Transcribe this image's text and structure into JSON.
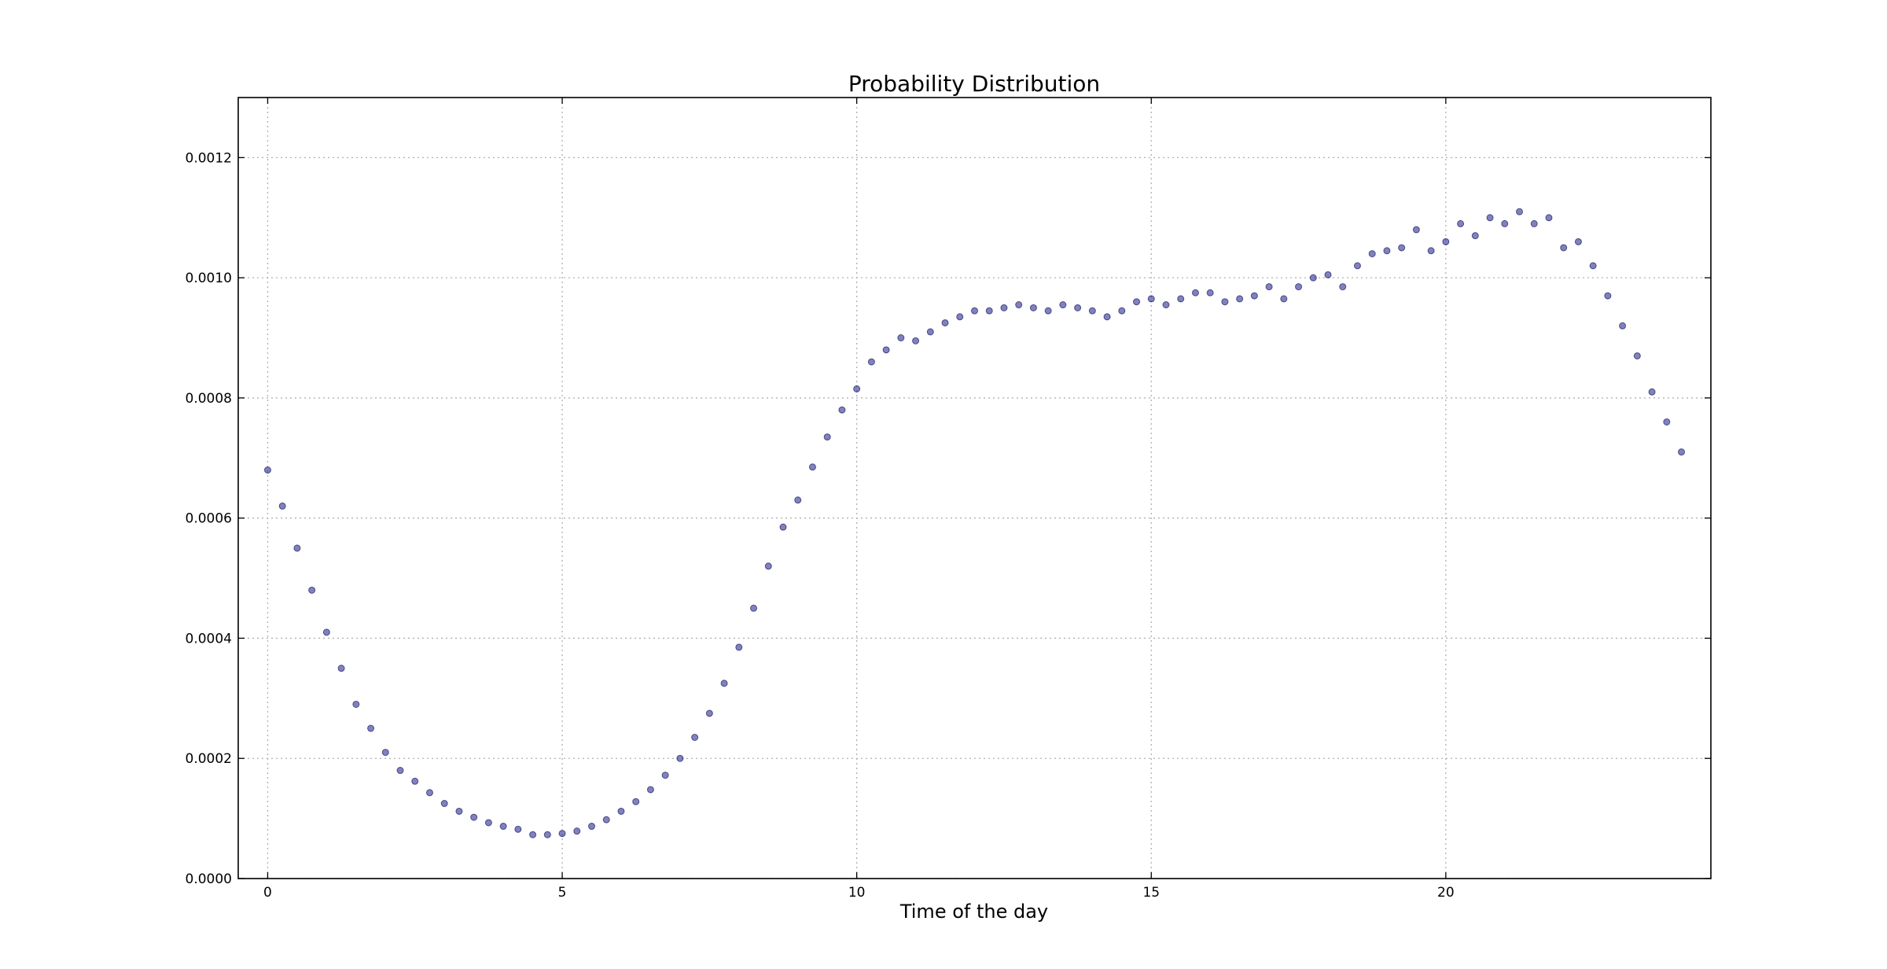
{
  "chart_data": {
    "type": "scatter",
    "title": "Probability Distribution",
    "xlabel": "Time of the day",
    "ylabel": "",
    "xlim": [
      -0.5,
      24.5
    ],
    "ylim": [
      0,
      0.0013
    ],
    "xticks": [
      0,
      5,
      10,
      15,
      20
    ],
    "xtick_labels": [
      "0",
      "5",
      "10",
      "15",
      "20"
    ],
    "yticks": [
      0,
      0.0002,
      0.0004,
      0.0006,
      0.0008,
      0.001,
      0.0012
    ],
    "ytick_labels": [
      "0.0000",
      "0.0002",
      "0.0004",
      "0.0006",
      "0.0008",
      "0.0010",
      "0.0012"
    ],
    "grid": true,
    "marker_color": "#1a1a8c",
    "series": [
      {
        "x": [
          0,
          0.25,
          0.5,
          0.75,
          1,
          1.25,
          1.5,
          1.75,
          2,
          2.25,
          2.5,
          2.75,
          3,
          3.25,
          3.5,
          3.75,
          4,
          4.25,
          4.5,
          4.75,
          5,
          5.25,
          5.5,
          5.75,
          6,
          6.25,
          6.5,
          6.75,
          7,
          7.25,
          7.5,
          7.75,
          8,
          8.25,
          8.5,
          8.75,
          9,
          9.25,
          9.5,
          9.75,
          10,
          10.25,
          10.5,
          10.75,
          11,
          11.25,
          11.5,
          11.75,
          12,
          12.25,
          12.5,
          12.75,
          13,
          13.25,
          13.5,
          13.75,
          14,
          14.25,
          14.5,
          14.75,
          15,
          15.25,
          15.5,
          15.75,
          16,
          16.25,
          16.5,
          16.75,
          17,
          17.25,
          17.5,
          17.75,
          18,
          18.25,
          18.5,
          18.75,
          19,
          19.25,
          19.5,
          19.75,
          20,
          20.25,
          20.5,
          20.75,
          21,
          21.25,
          21.5,
          21.75,
          22,
          22.25,
          22.5,
          22.75,
          23,
          23.25,
          23.5,
          23.75,
          24
        ],
        "y": [
          0.00068,
          0.00062,
          0.00055,
          0.00048,
          0.00041,
          0.00035,
          0.00029,
          0.00025,
          0.00021,
          0.00018,
          0.000162,
          0.000143,
          0.000125,
          0.000112,
          0.000102,
          9.3e-05,
          8.7e-05,
          8.2e-05,
          7.3e-05,
          7.3e-05,
          7.5e-05,
          7.9e-05,
          8.7e-05,
          9.8e-05,
          0.000112,
          0.000128,
          0.000148,
          0.000172,
          0.0002,
          0.000235,
          0.000275,
          0.000325,
          0.000385,
          0.00045,
          0.00052,
          0.000585,
          0.00063,
          0.000685,
          0.000735,
          0.00078,
          0.000815,
          0.00086,
          0.00088,
          0.0009,
          0.000895,
          0.00091,
          0.000925,
          0.000935,
          0.000945,
          0.000945,
          0.00095,
          0.000955,
          0.00095,
          0.000945,
          0.000955,
          0.00095,
          0.000945,
          0.000935,
          0.000945,
          0.00096,
          0.000965,
          0.000955,
          0.000965,
          0.000975,
          0.000975,
          0.00096,
          0.000965,
          0.00097,
          0.000985,
          0.000965,
          0.000985,
          0.001,
          0.001005,
          0.000985,
          0.00102,
          0.00104,
          0.001045,
          0.00105,
          0.00108,
          0.001045,
          0.00106,
          0.00109,
          0.00107,
          0.0011,
          0.00109,
          0.00111,
          0.00109,
          0.0011,
          0.00105,
          0.00106,
          0.00102,
          0.00097,
          0.00092,
          0.00087,
          0.00081,
          0.00076,
          0.00071
        ]
      }
    ]
  }
}
